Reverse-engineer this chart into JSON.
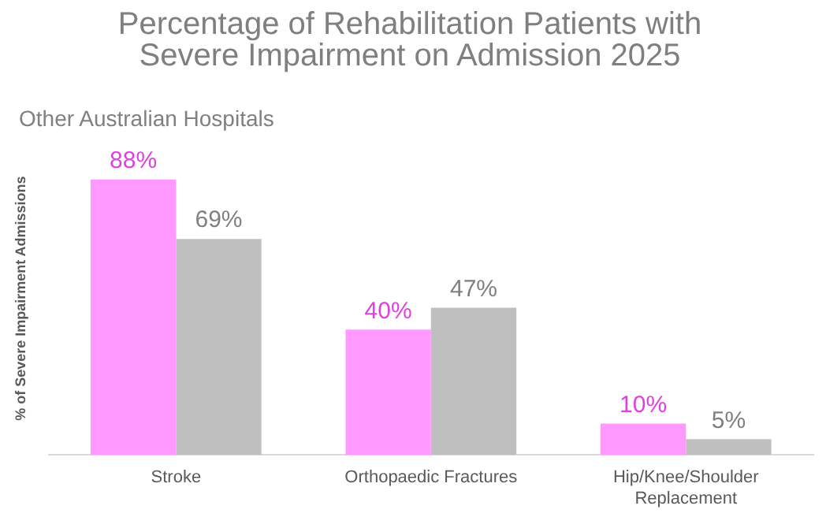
{
  "chart_data": {
    "type": "bar",
    "title": "Percentage of Rehabilitation Patients with Severe Impairment on Admission 2025",
    "ylabel": "% of Severe Impairment Admissions",
    "categories": [
      "Stroke",
      "Orthopaedic Fractures",
      "Hip/Knee/Shoulder Replacement"
    ],
    "series": [
      {
        "color": "#ff99ff",
        "values": [
          88,
          40,
          10
        ],
        "value_labels": [
          "88%",
          "40%",
          "10%"
        ]
      },
      {
        "name": "Other Australian Hospitals",
        "color": "#bfbfbf",
        "values": [
          69,
          47,
          5
        ],
        "value_labels": [
          "69%",
          "47%",
          "5%"
        ]
      }
    ],
    "legend": "top left",
    "tick_labels": "x",
    "grid": false
  }
}
